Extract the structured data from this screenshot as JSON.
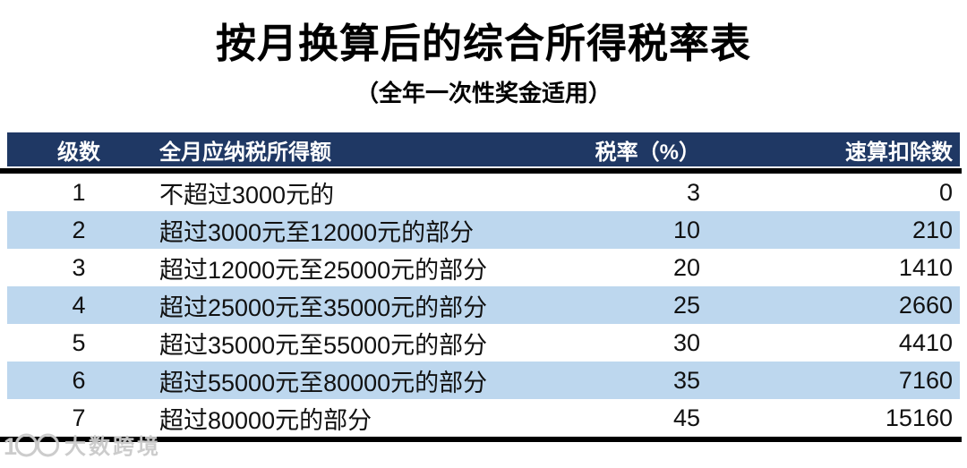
{
  "page": {
    "title": "按月换算后的综合所得税率表",
    "subtitle": "（全年一次性奖金适用）"
  },
  "chart_data": {
    "type": "table",
    "title": "按月换算后的综合所得税率表",
    "subtitle": "（全年一次性奖金适用）",
    "columns": [
      "级数",
      "全月应纳税所得额",
      "税率（%）",
      "速算扣除数"
    ],
    "rows": [
      {
        "level": "1",
        "income": "不超过3000元的",
        "rate": "3",
        "deduction": "0"
      },
      {
        "level": "2",
        "income": "超过3000元至12000元的部分",
        "rate": "10",
        "deduction": "210"
      },
      {
        "level": "3",
        "income": "超过12000元至25000元的部分",
        "rate": "20",
        "deduction": "1410"
      },
      {
        "level": "4",
        "income": "超过25000元至35000元的部分",
        "rate": "25",
        "deduction": "2660"
      },
      {
        "level": "5",
        "income": "超过35000元至55000元的部分",
        "rate": "30",
        "deduction": "4410"
      },
      {
        "level": "6",
        "income": "超过55000元至80000元的部分",
        "rate": "35",
        "deduction": "7160"
      },
      {
        "level": "7",
        "income": "超过80000元的部分",
        "rate": "45",
        "deduction": "15160"
      }
    ]
  },
  "watermark": {
    "logo": "1〇〇",
    "text": "大数跨境"
  },
  "colors": {
    "header_bg": "#1F3864",
    "header_text": "#FFFFFF",
    "row_alt_bg": "#BDD7EE",
    "rule": "#000000"
  }
}
